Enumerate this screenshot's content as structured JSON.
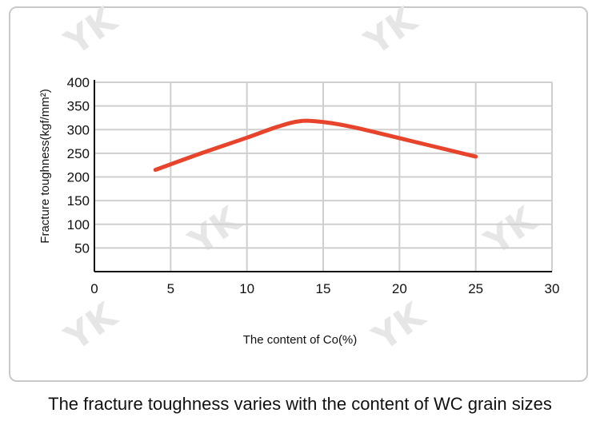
{
  "chart_data": {
    "type": "line",
    "title": "",
    "xlabel": "The content of Co(%)",
    "ylabel": "Fracture toughness(kgf/mm²)",
    "xlim": [
      0,
      30
    ],
    "ylim": [
      0,
      400
    ],
    "x_ticks": [
      "0",
      "5",
      "10",
      "15",
      "20",
      "25",
      "30"
    ],
    "y_ticks": [
      "50",
      "100",
      "150",
      "200",
      "250",
      "300",
      "350",
      "400"
    ],
    "grid": true,
    "series": [
      {
        "color": "#e8432b",
        "x": [
          4,
          7,
          10,
          12,
          13.5,
          15,
          17,
          20,
          25
        ],
        "y": [
          215,
          250,
          283,
          306,
          318,
          316,
          305,
          282,
          243
        ]
      }
    ]
  },
  "watermark": "YK",
  "caption": "The fracture toughness varies with the content of WC grain sizes"
}
